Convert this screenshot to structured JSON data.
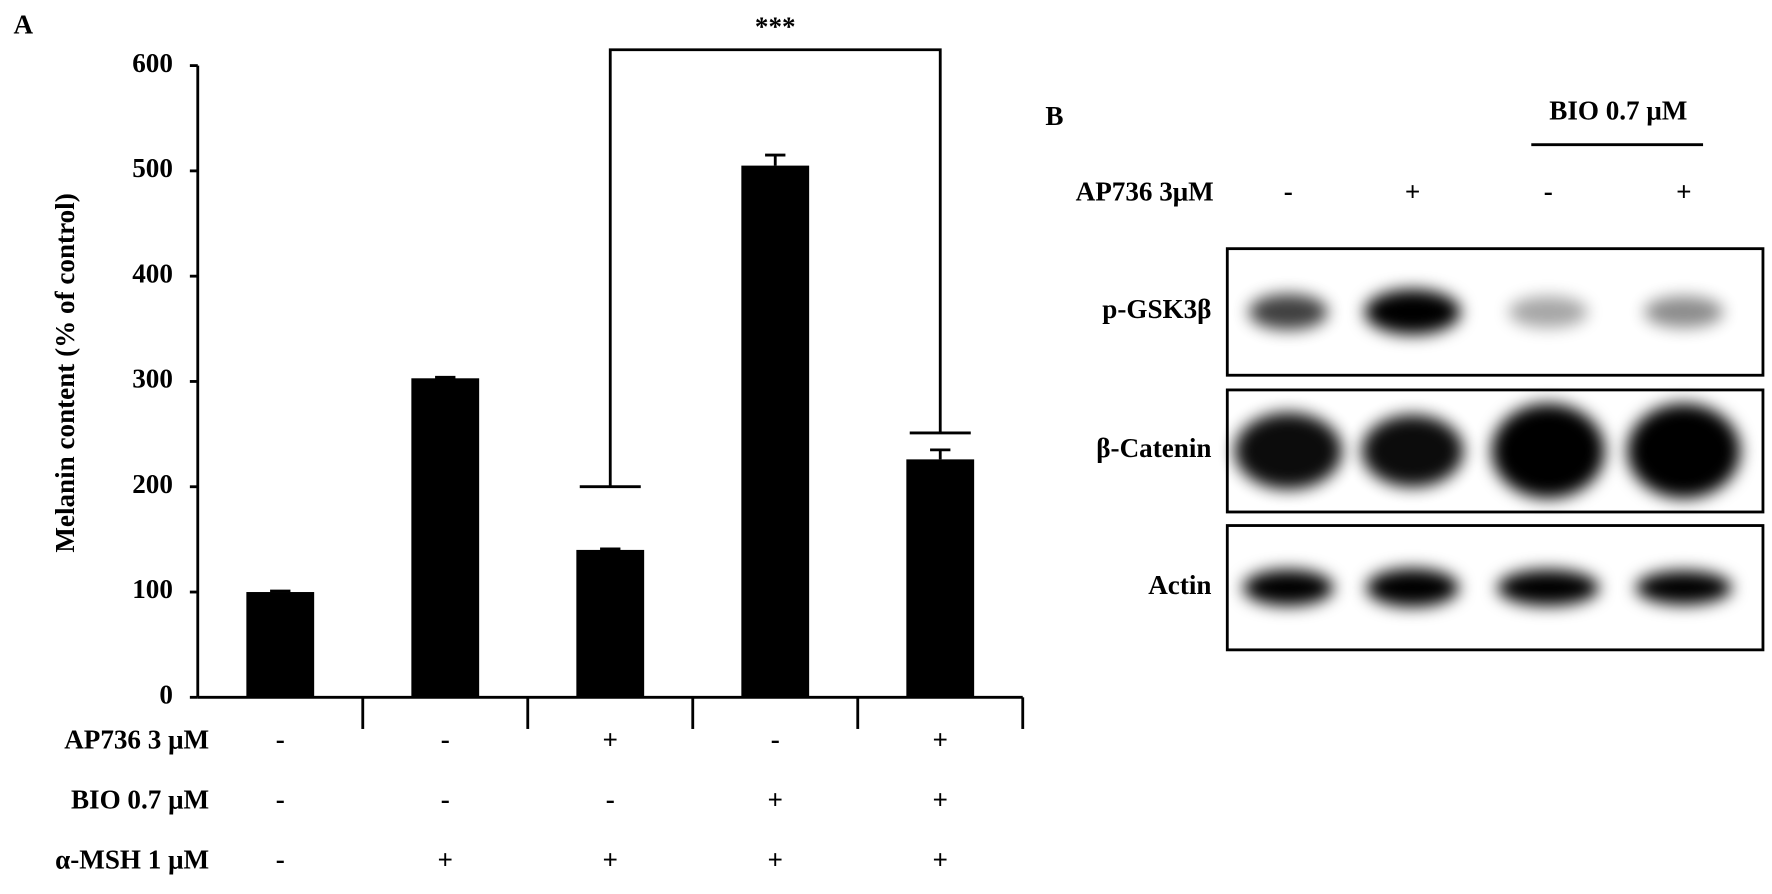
{
  "chart_data": {
    "type": "bar",
    "panel_label": "A",
    "ylabel": "Melanin content  (% of control)",
    "categories": [
      null,
      null,
      null,
      null,
      null
    ],
    "values": [
      100,
      303,
      140,
      505,
      226
    ],
    "errors": [
      1,
      1,
      1,
      10,
      9
    ],
    "color": "#000000",
    "ylim": [
      0,
      600
    ],
    "yticks": [
      0,
      100,
      200,
      300,
      400,
      500,
      600
    ],
    "treatments": [
      {
        "label": "AP736 3 μM",
        "values": [
          "-",
          "-",
          "+",
          "-",
          "+"
        ]
      },
      {
        "label": "BIO 0.7 μM",
        "values": [
          "-",
          "-",
          "-",
          "+",
          "+"
        ]
      },
      {
        "label": "α-MSH 1 μM",
        "values": [
          "-",
          "+",
          "+",
          "+",
          "+"
        ]
      }
    ],
    "annotation": "***"
  },
  "blot": {
    "panel_label": "B",
    "group_label": "BIO 0.7 μM",
    "treatment": {
      "label": "AP736 3μM",
      "values": [
        "-",
        "+",
        "-",
        "+"
      ]
    },
    "rows": [
      "p-GSK3β",
      "β-Catenin",
      "Actin"
    ]
  }
}
